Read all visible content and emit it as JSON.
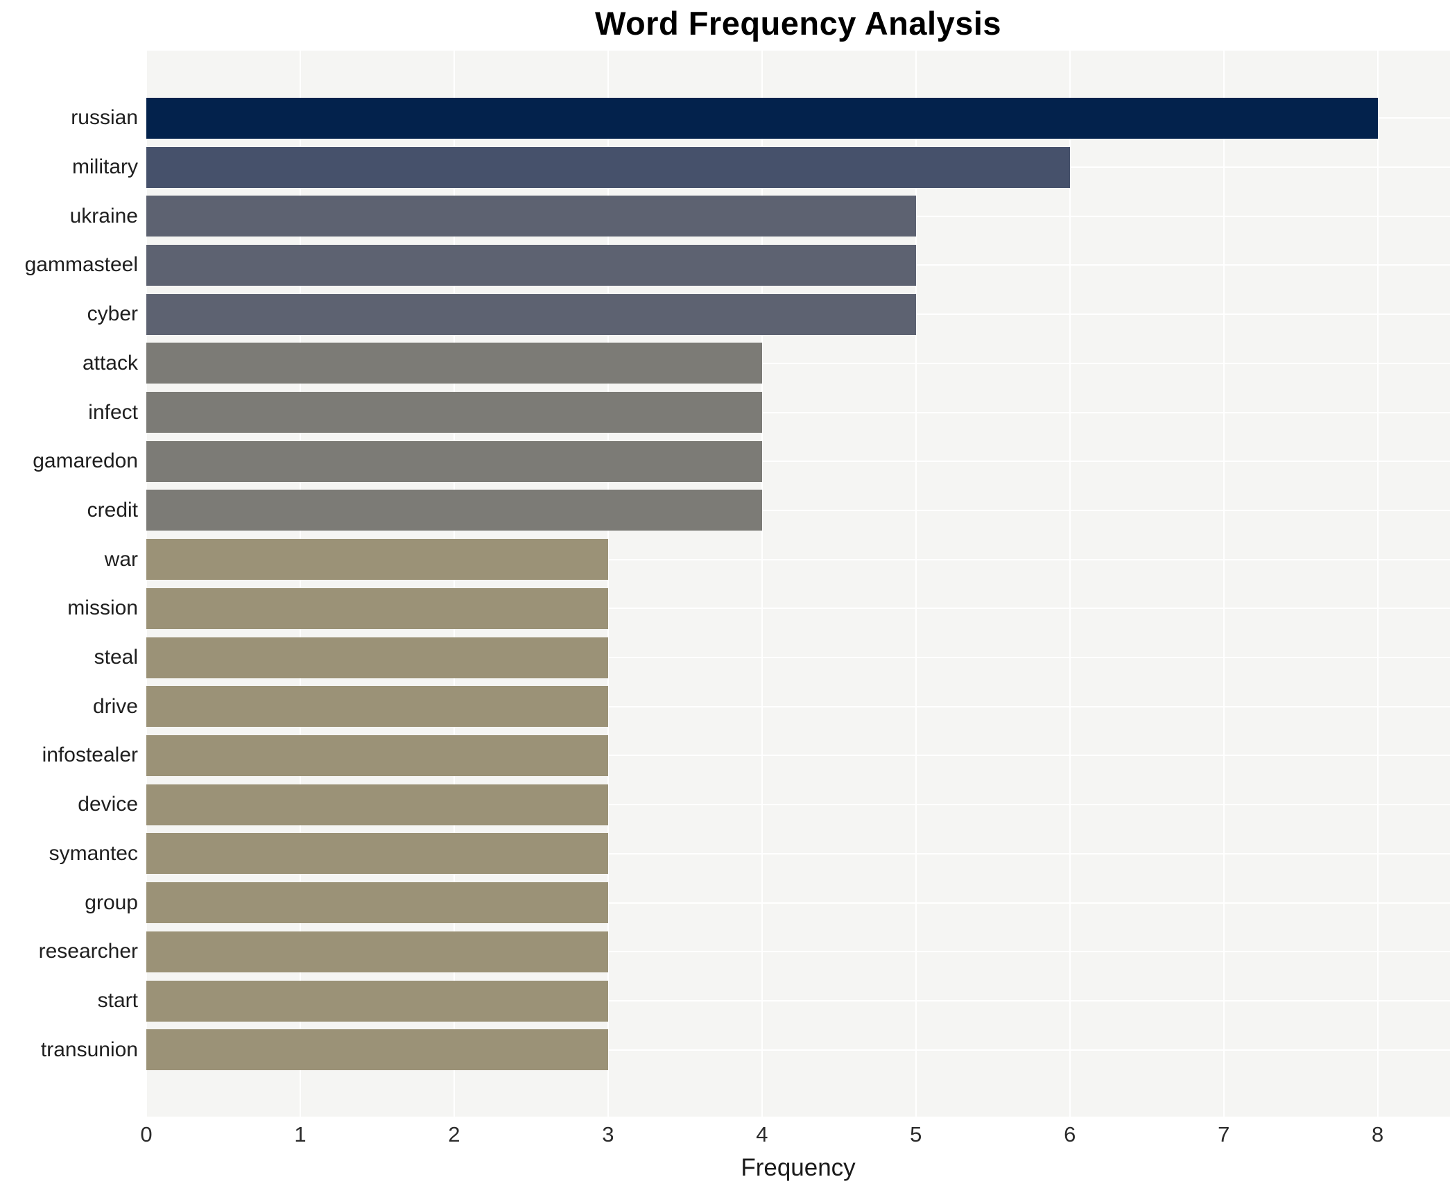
{
  "title": "Word Frequency Analysis",
  "chart_data": {
    "type": "bar",
    "orientation": "horizontal",
    "title": "Word Frequency Analysis",
    "xlabel": "Frequency",
    "ylabel": "",
    "categories": [
      "russian",
      "military",
      "ukraine",
      "gammasteel",
      "cyber",
      "attack",
      "infect",
      "gamaredon",
      "credit",
      "war",
      "mission",
      "steal",
      "drive",
      "infostealer",
      "device",
      "symantec",
      "group",
      "researcher",
      "start",
      "transunion"
    ],
    "values": [
      8,
      6,
      5,
      5,
      5,
      4,
      4,
      4,
      4,
      3,
      3,
      3,
      3,
      3,
      3,
      3,
      3,
      3,
      3,
      3
    ],
    "xticks": [
      0,
      1,
      2,
      3,
      4,
      5,
      6,
      7,
      8
    ],
    "xlim": [
      0,
      8.47
    ],
    "grid": true,
    "legend": false
  },
  "colors": {
    "plot_background": "#f5f5f3",
    "gridline": "#ffffff",
    "value_colors": {
      "8": "#03224c",
      "6": "#46516b",
      "5": "#5d6271",
      "4": "#7c7b76",
      "3": "#9b9277"
    },
    "tick_label": "#2b2b2b",
    "category_label": "#1f1f1f",
    "title_color": "#000000"
  }
}
